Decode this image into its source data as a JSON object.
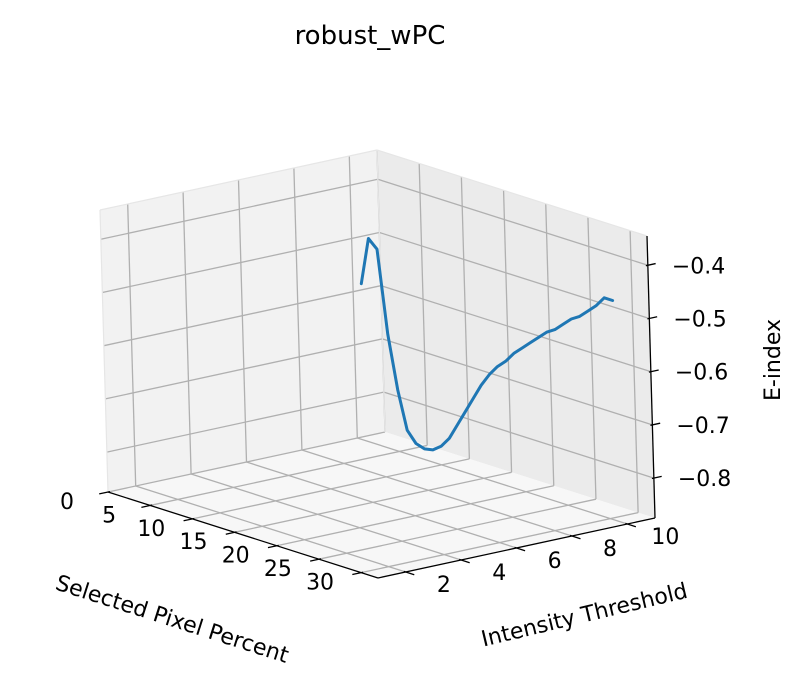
{
  "chart_data": {
    "type": "line",
    "projection": "3d",
    "title": "robust_wPC",
    "xlabel": "Selected Pixel Percent",
    "ylabel": "Intensity Threshold",
    "zlabel": "E-index",
    "x_ticks": [
      "0",
      "5",
      "10",
      "15",
      "20",
      "25",
      "30"
    ],
    "y_ticks": [
      "2",
      "4",
      "6",
      "8",
      "10"
    ],
    "z_ticks": [
      "−0.4",
      "−0.5",
      "−0.6",
      "−0.7",
      "−0.8"
    ],
    "grid": true,
    "series_color": "#1f77b4",
    "series": [
      {
        "points": [
          [
            1,
            10,
            -0.58
          ],
          [
            2,
            10,
            -0.49
          ],
          [
            3,
            10,
            -0.505
          ],
          [
            4,
            10,
            -0.66
          ],
          [
            5,
            10,
            -0.76
          ],
          [
            6,
            10,
            -0.83
          ],
          [
            7,
            10,
            -0.85
          ],
          [
            8,
            10,
            -0.855
          ],
          [
            9,
            10,
            -0.852
          ],
          [
            10,
            10,
            -0.84
          ],
          [
            11,
            10,
            -0.82
          ],
          [
            12,
            10,
            -0.79
          ],
          [
            13,
            10,
            -0.76
          ],
          [
            14,
            10,
            -0.73
          ],
          [
            15,
            10,
            -0.7
          ],
          [
            16,
            10,
            -0.675
          ],
          [
            17,
            10,
            -0.655
          ],
          [
            18,
            10,
            -0.64
          ],
          [
            19,
            10,
            -0.62
          ],
          [
            20,
            10,
            -0.605
          ],
          [
            21,
            10,
            -0.59
          ],
          [
            22,
            10,
            -0.575
          ],
          [
            23,
            10,
            -0.56
          ],
          [
            24,
            10,
            -0.55
          ],
          [
            25,
            10,
            -0.535
          ],
          [
            26,
            10,
            -0.52
          ],
          [
            27,
            10,
            -0.51
          ],
          [
            28,
            10,
            -0.495
          ],
          [
            29,
            10,
            -0.48
          ],
          [
            30,
            10,
            -0.46
          ],
          [
            31,
            10,
            -0.46
          ]
        ]
      }
    ]
  }
}
